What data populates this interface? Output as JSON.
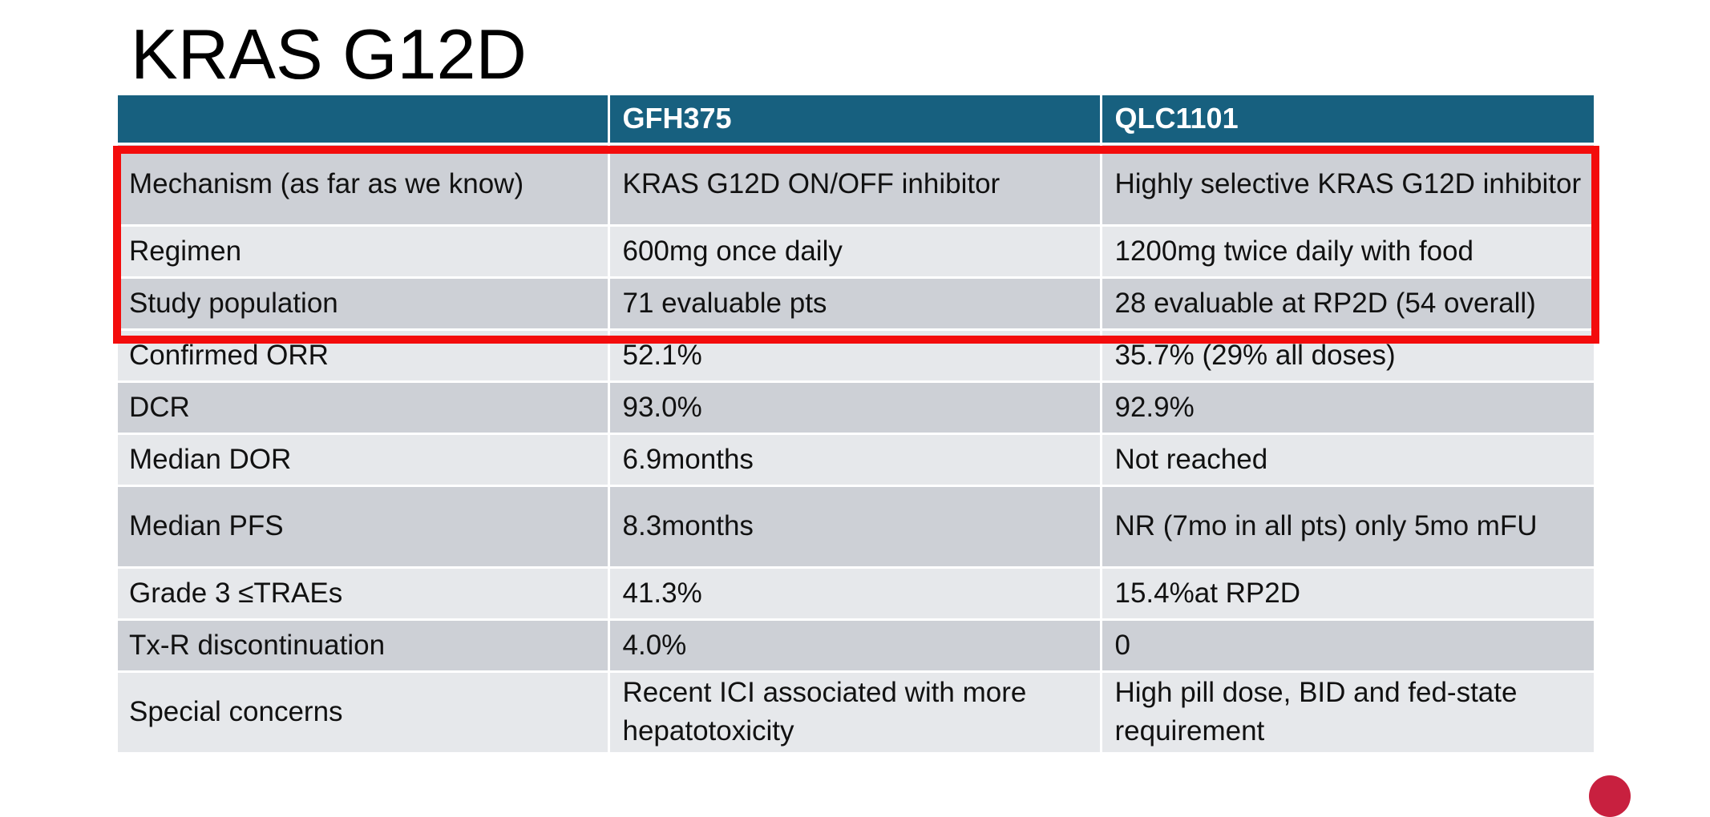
{
  "title": "KRAS G12D",
  "table": {
    "header": [
      "",
      "GFH375",
      "QLC1101"
    ],
    "rows": [
      [
        "Mechanism (as far as we know)",
        "KRAS G12D ON/OFF inhibitor",
        "Highly selective KRAS G12D inhibitor"
      ],
      [
        "Regimen",
        "600mg once daily",
        "1200mg twice daily with food"
      ],
      [
        "Study population",
        "71 evaluable pts",
        "28 evaluable at RP2D  (54 overall)"
      ],
      [
        "Confirmed ORR",
        "52.1%",
        "35.7% (29% all doses)"
      ],
      [
        "DCR",
        "93.0%",
        "92.9%"
      ],
      [
        "Median DOR",
        "6.9months",
        "Not reached"
      ],
      [
        "Median PFS",
        "8.3months",
        "NR (7mo in all pts) only 5mo mFU"
      ],
      [
        "Grade 3 ≤TRAEs",
        "41.3%",
        "15.4%at RP2D"
      ],
      [
        "Tx-R discontinuation",
        "4.0%",
        "0"
      ],
      [
        "Special concerns",
        "Recent ICI associated with more hepatotoxicity",
        "High pill dose, BID and fed-state requirement"
      ]
    ]
  },
  "colors": {
    "header_bg": "#17607f",
    "row_dark": "#cdd0d6",
    "row_light": "#e6e8eb",
    "highlight": "#f30c0c"
  }
}
